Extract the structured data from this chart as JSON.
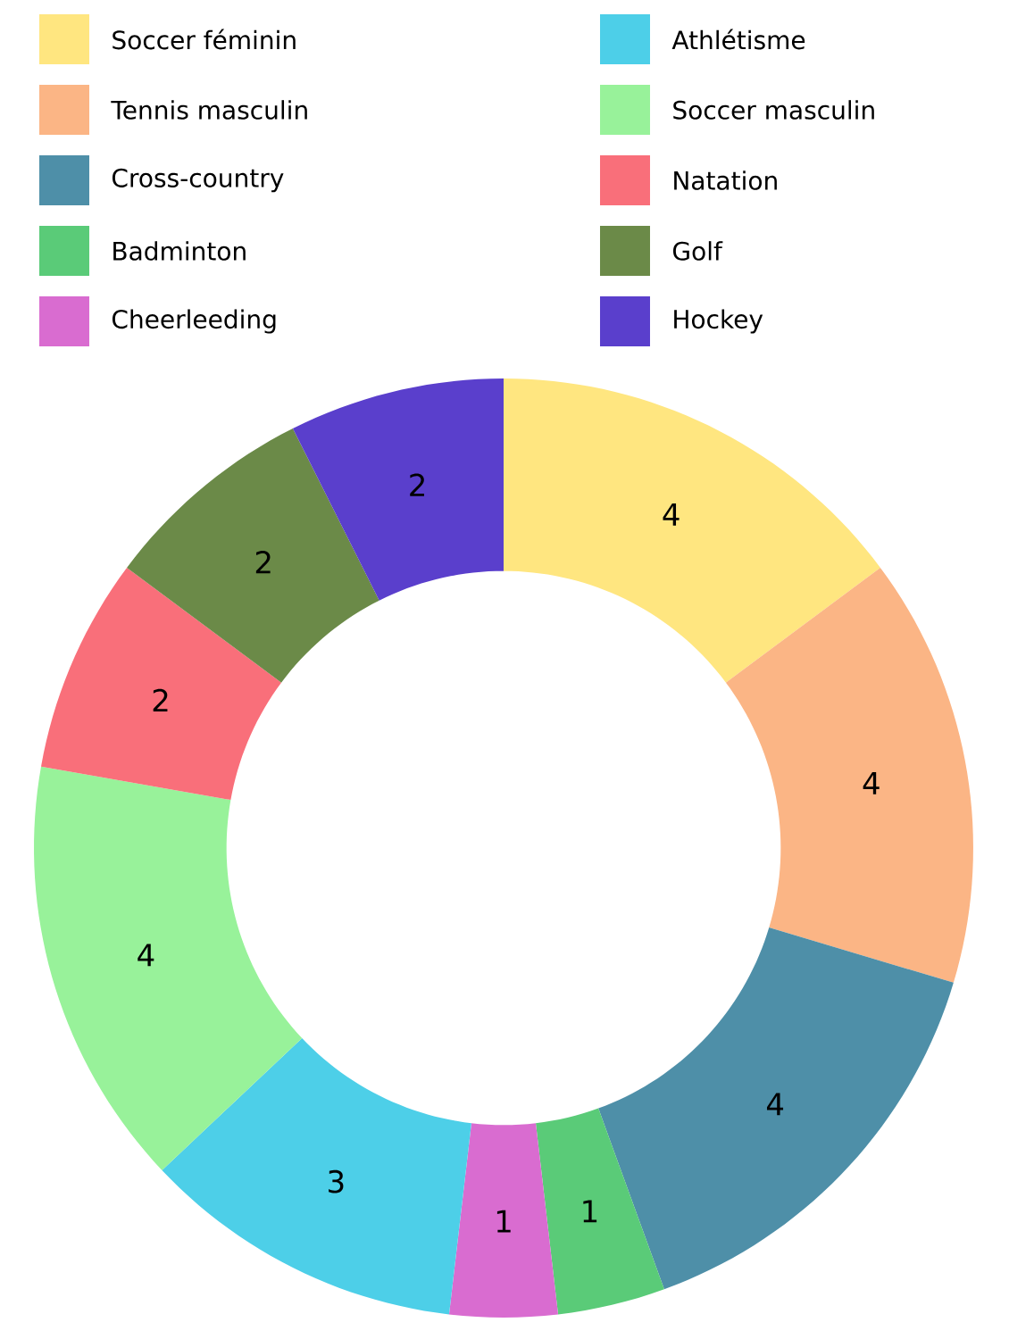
{
  "chart_data": {
    "type": "donut",
    "categories": [
      "Soccer féminin",
      "Tennis masculin",
      "Cross-country",
      "Badminton",
      "Cheerleeding",
      "Athlétisme",
      "Soccer masculin",
      "Natation",
      "Golf",
      "Hockey"
    ],
    "values": [
      4,
      4,
      4,
      1,
      1,
      3,
      4,
      2,
      2,
      2
    ],
    "colors": [
      "#ffe680",
      "#fbb585",
      "#4e8fa8",
      "#5acb78",
      "#d96cd0",
      "#4dcfe8",
      "#98f29a",
      "#f96f7a",
      "#6b8a48",
      "#5a3fcc"
    ],
    "data_labels": true,
    "legend": "top"
  }
}
